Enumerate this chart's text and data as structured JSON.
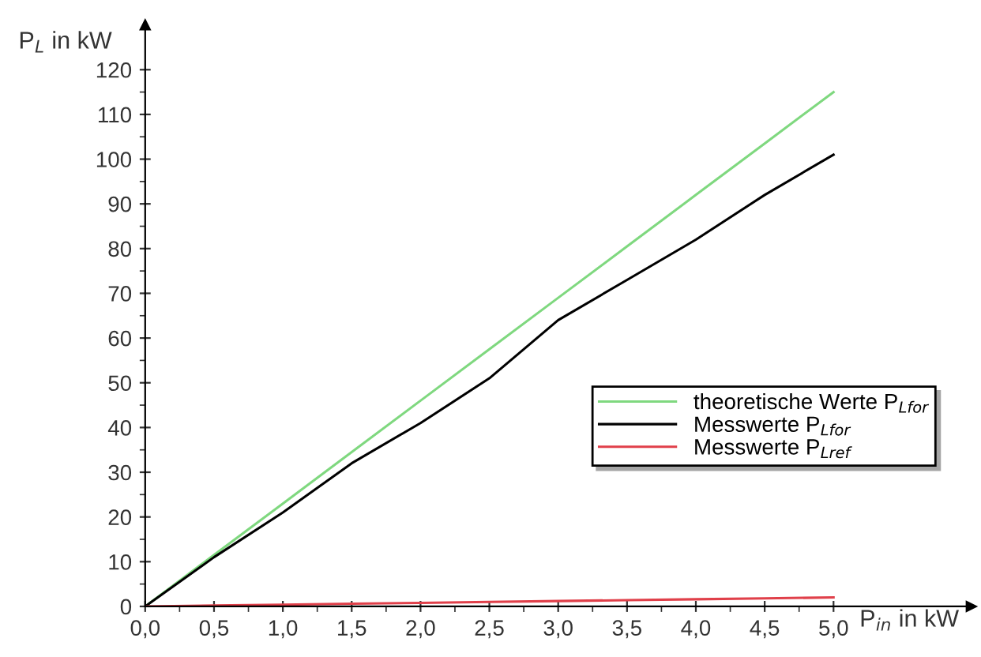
{
  "chart_data": {
    "type": "line",
    "xlabel": "P$_{in}$ in kW",
    "ylabel": "P$_{L}$ in kW",
    "x": [
      0,
      0.5,
      1.0,
      1.5,
      2.0,
      2.5,
      3.0,
      3.5,
      4.0,
      4.5,
      5.0
    ],
    "series": [
      {
        "name": "theoretische Werte P$_{Lfor}$",
        "color": "#7fd87f",
        "values": [
          0,
          11.5,
          23,
          34.5,
          46,
          57.5,
          69,
          80.5,
          92,
          103.5,
          115
        ]
      },
      {
        "name": "Messwerte P$_{Lfor}$",
        "color": "#000000",
        "values": [
          0,
          11,
          21,
          32,
          41,
          51,
          64,
          73,
          82,
          92,
          101
        ]
      },
      {
        "name": "Messwerte P$_{Lref}$",
        "color": "#e0404a",
        "values": [
          0,
          0.2,
          0.4,
          0.6,
          0.8,
          1.0,
          1.2,
          1.4,
          1.6,
          1.8,
          2.0
        ]
      }
    ],
    "xlim": [
      0,
      6
    ],
    "ylim": [
      0,
      130
    ],
    "xticks": [
      {
        "value": 0,
        "label": "0,0"
      },
      {
        "value": 0.25,
        "label": null
      },
      {
        "value": 0.5,
        "label": "0,5"
      },
      {
        "value": 0.75,
        "label": null
      },
      {
        "value": 1,
        "label": "1,0"
      },
      {
        "value": 1.25,
        "label": null
      },
      {
        "value": 1.5,
        "label": "1,5"
      },
      {
        "value": 1.75,
        "label": null
      },
      {
        "value": 2,
        "label": "2,0"
      },
      {
        "value": 2.25,
        "label": null
      },
      {
        "value": 2.5,
        "label": "2,5"
      },
      {
        "value": 2.75,
        "label": null
      },
      {
        "value": 3,
        "label": "3,0"
      },
      {
        "value": 3.25,
        "label": null
      },
      {
        "value": 3.5,
        "label": "3,5"
      },
      {
        "value": 3.75,
        "label": null
      },
      {
        "value": 4,
        "label": "4,0"
      },
      {
        "value": 4.25,
        "label": null
      },
      {
        "value": 4.5,
        "label": "4,5"
      },
      {
        "value": 4.75,
        "label": null
      },
      {
        "value": 5,
        "label": "5,0"
      }
    ],
    "yticks": [
      0,
      {
        "value": 5,
        "label": null
      },
      10,
      {
        "value": 15,
        "label": null
      },
      20,
      {
        "value": 25,
        "label": null
      },
      30,
      {
        "value": 35,
        "label": null
      },
      40,
      {
        "value": 45,
        "label": null
      },
      50,
      {
        "value": 55,
        "label": null
      },
      60,
      {
        "value": 65,
        "label": null
      },
      70,
      {
        "value": 75,
        "label": null
      },
      80,
      {
        "value": 85,
        "label": null
      },
      90,
      {
        "value": 95,
        "label": null
      },
      100,
      {
        "value": 105,
        "label": null
      },
      110,
      {
        "value": 115,
        "label": null
      },
      120
    ],
    "grid": false,
    "legend": "right",
    "marker": "none",
    "line_style": "solid"
  }
}
